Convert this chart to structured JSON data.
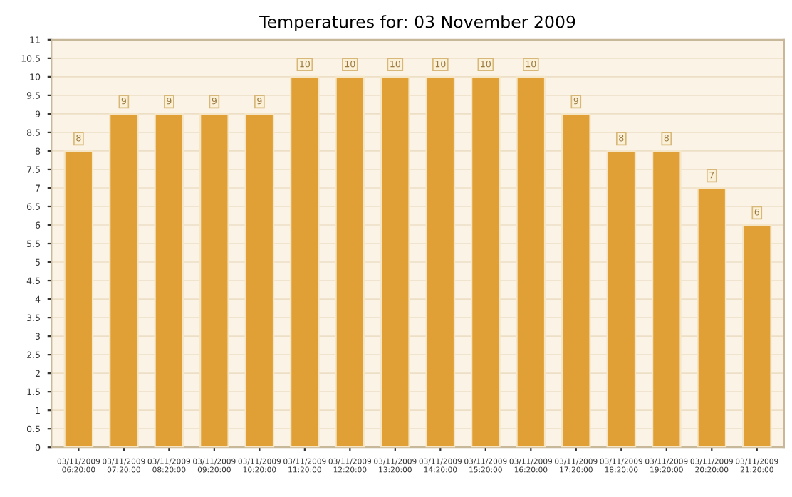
{
  "chart_data": {
    "type": "bar",
    "title": "Temperatures for: 03 November 2009",
    "categories": [
      "03/11/2009 06:20:00",
      "03/11/2009 07:20:00",
      "03/11/2009 08:20:00",
      "03/11/2009 09:20:00",
      "03/11/2009 10:20:00",
      "03/11/2009 11:20:00",
      "03/11/2009 12:20:00",
      "03/11/2009 13:20:00",
      "03/11/2009 14:20:00",
      "03/11/2009 15:20:00",
      "03/11/2009 16:20:00",
      "03/11/2009 17:20:00",
      "03/11/2009 18:20:00",
      "03/11/2009 19:20:00",
      "03/11/2009 20:20:00",
      "03/11/2009 21:20:00"
    ],
    "values": [
      8,
      9,
      9,
      9,
      9,
      10,
      10,
      10,
      10,
      10,
      10,
      9,
      8,
      8,
      7,
      6
    ],
    "color": "#e0a035",
    "ylim": [
      0,
      11
    ],
    "yticks": [
      0,
      0.5,
      1,
      1.5,
      2,
      2.5,
      3,
      3.5,
      4,
      4.5,
      5,
      5.5,
      6,
      6.5,
      7,
      7.5,
      8,
      8.5,
      9,
      9.5,
      10,
      10.5,
      11
    ],
    "grid": "y",
    "data_labels": true
  }
}
